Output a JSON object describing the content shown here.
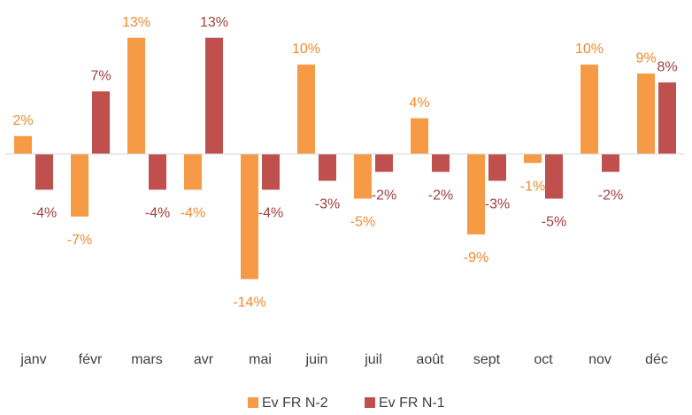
{
  "chart_data": {
    "type": "bar",
    "categories": [
      "janv",
      "févr",
      "mars",
      "avr",
      "mai",
      "juin",
      "juil",
      "août",
      "sept",
      "oct",
      "nov",
      "déc"
    ],
    "series": [
      {
        "name": "Ev FR N-2",
        "color": "#f79a46",
        "label_color": "#ef8a2e",
        "values": [
          2,
          -7,
          13,
          -4,
          -14,
          10,
          -5,
          4,
          -9,
          -1,
          10,
          9
        ],
        "value_labels": [
          "2%",
          "-7%",
          "13%",
          "-4%",
          "-14%",
          "10%",
          "-5%",
          "4%",
          "-9%",
          "-1%",
          "10%",
          "9%"
        ]
      },
      {
        "name": "Ev FR N-1",
        "color": "#c0504d",
        "label_color": "#a0403d",
        "values": [
          -4,
          7,
          -4,
          13,
          -4,
          -3,
          -2,
          -2,
          -3,
          -5,
          -2,
          8
        ],
        "value_labels": [
          "-4%",
          "7%",
          "-4%",
          "13%",
          "-4%",
          "-3%",
          "-2%",
          "-2%",
          "-3%",
          "-5%",
          "-2%",
          "8%"
        ]
      }
    ],
    "legend": "bottom"
  }
}
